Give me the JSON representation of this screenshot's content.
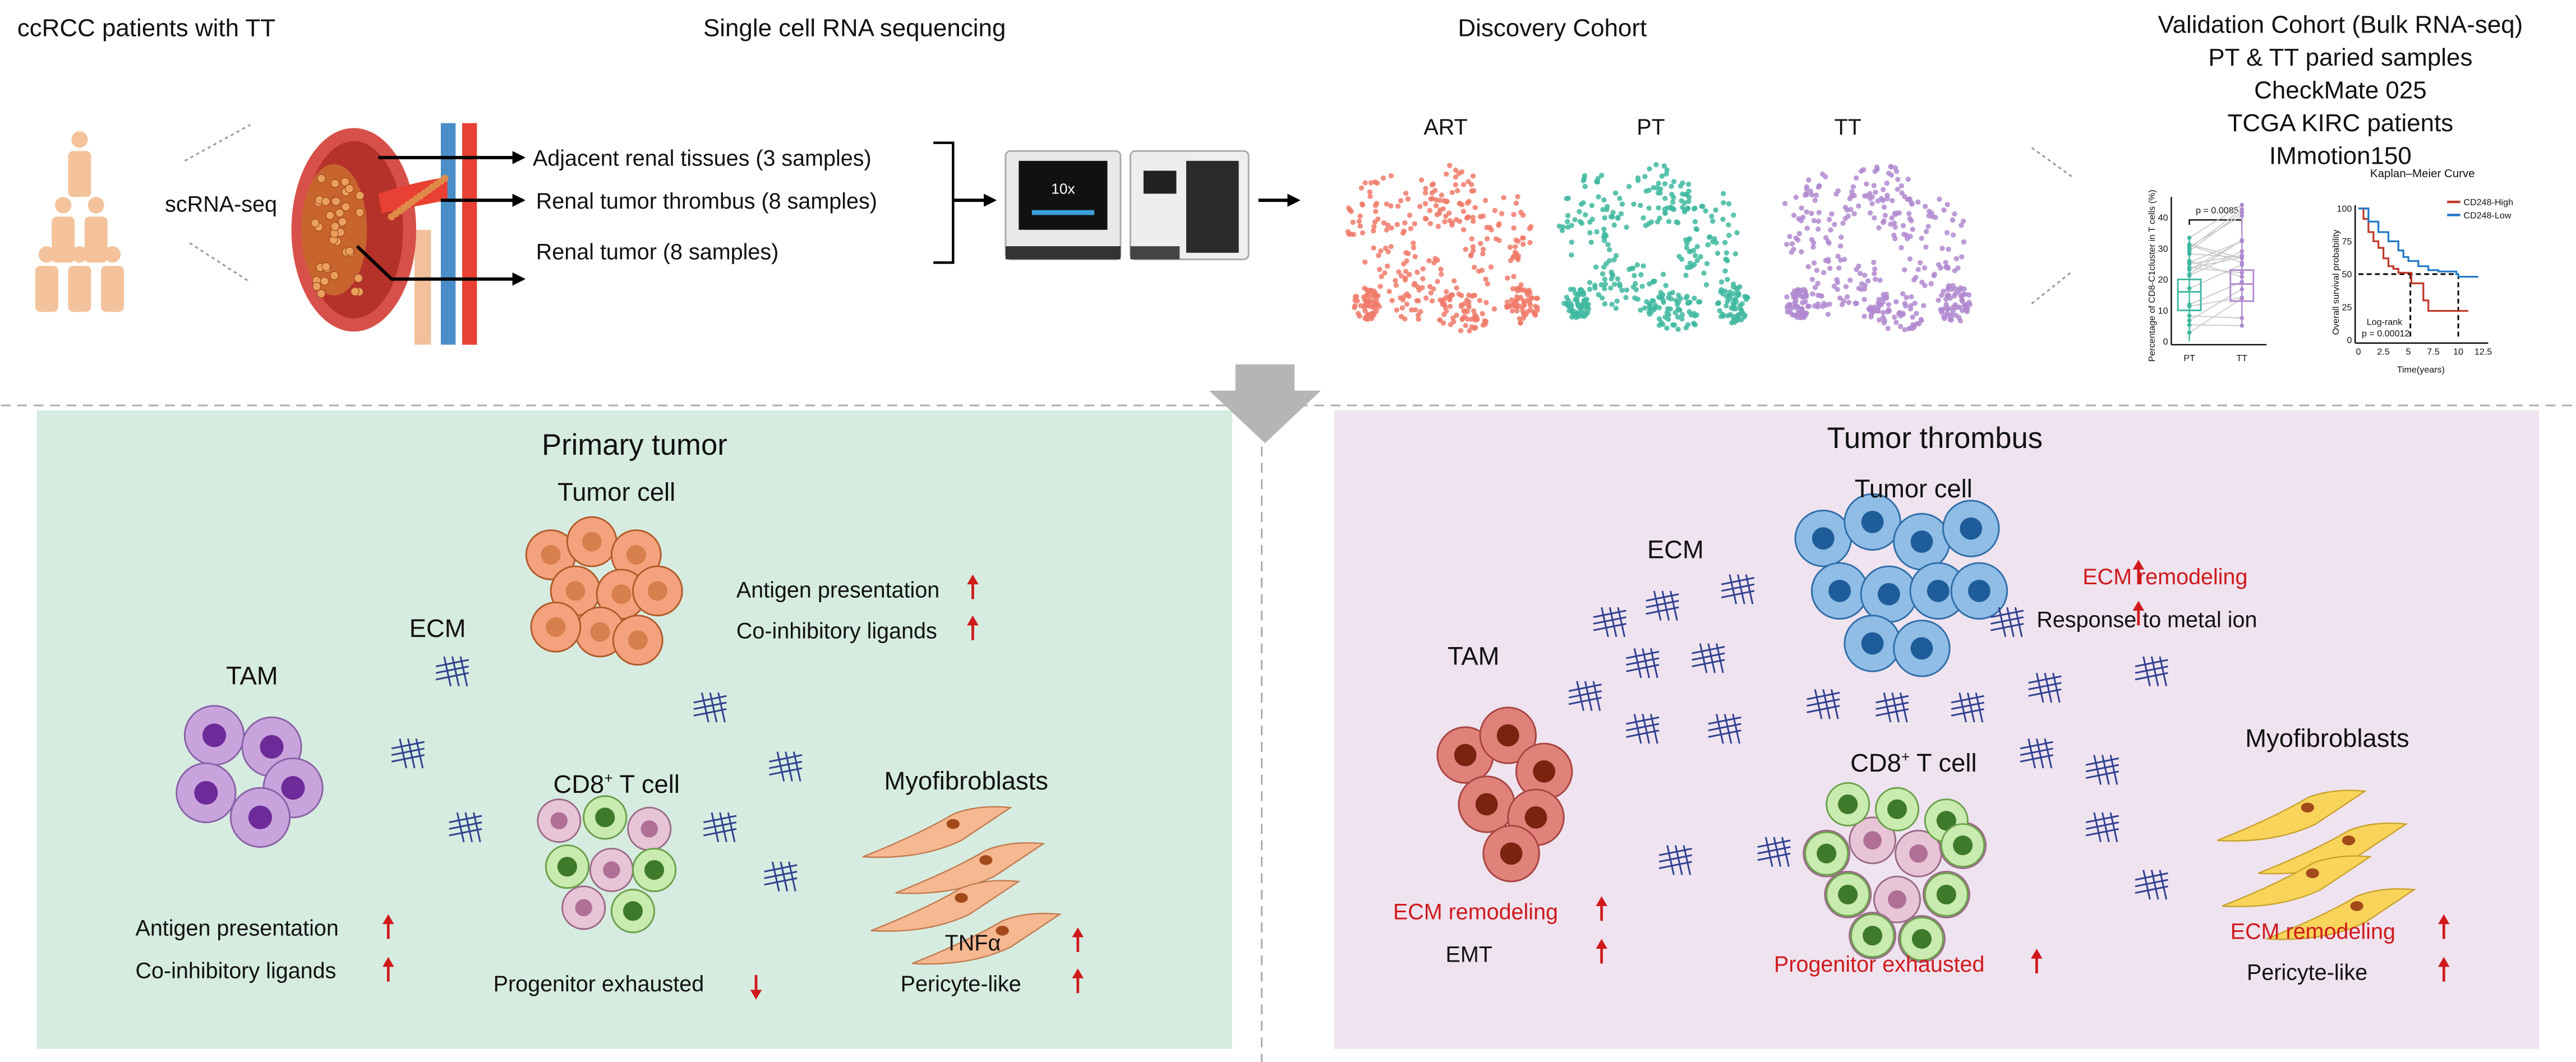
{
  "top": {
    "patients_title": "ccRCC patients with TT",
    "scrna_title": "Single cell RNA sequencing",
    "discovery_title": "Discovery Cohort",
    "validation_title": "Validation Cohort (Bulk RNA-seq)",
    "validation_items": [
      "PT & TT paried samples",
      "CheckMate 025",
      "TCGA KIRC  patients",
      "IMmotion150"
    ],
    "scrna_label": "scRNA-seq",
    "samples": [
      "Adjacent renal tissues (3 samples)",
      "Renal tumor thrombus  (8 samples)",
      "Renal tumor  (8 samples)"
    ],
    "umap_labels": [
      "ART",
      "PT",
      "TT"
    ],
    "machine_label": "10x"
  },
  "colors": {
    "people": "#f4c39b",
    "art": "#f07a6a",
    "pt": "#3fb8a0",
    "tt": "#b08ad0",
    "primary_panel": "#d6ece0",
    "thrombus_panel": "#efe3f0",
    "up_arrow": "#d0191b",
    "ecm_text": "#d0191b"
  },
  "chart_data": [
    {
      "type": "box",
      "ylabel": "Percentage of CD8-C1cluster in T cells (%)",
      "categories": [
        "PT",
        "TT"
      ],
      "yticks": [
        "0",
        "10",
        "20",
        "30",
        "40"
      ],
      "ylim": [
        0,
        45
      ],
      "annotation": "p = 0.0085",
      "boxes": [
        {
          "name": "PT",
          "q1": 10,
          "median": 16,
          "q3": 20,
          "min": 0,
          "max": 34
        },
        {
          "name": "TT",
          "q1": 13,
          "median": 18.5,
          "q3": 23,
          "min": 5,
          "max": 44
        }
      ]
    },
    {
      "type": "line",
      "title": "Kaplan–Meier Curve",
      "xlabel": "Time(years)",
      "ylabel": "Overall survival probability",
      "xticks": [
        "0",
        "2.5",
        "5",
        "7.5",
        "10",
        "12.5"
      ],
      "yticks": [
        "0",
        "25",
        "50",
        "75",
        "100"
      ],
      "xlim": [
        0,
        12.5
      ],
      "ylim": [
        0,
        100
      ],
      "annotation_1": "Log-rank",
      "annotation_2": "p = 0.00012",
      "series": [
        {
          "name": "CD248-High",
          "color": "#c0392b",
          "x": [
            0,
            0.5,
            1,
            1.5,
            2,
            2.5,
            3,
            3.5,
            4,
            5,
            5.3,
            6,
            6.5,
            7,
            8,
            10,
            11
          ],
          "y": [
            100,
            92,
            82,
            75,
            70,
            62,
            56,
            54,
            51,
            51,
            43,
            43,
            30,
            22,
            22,
            22,
            22
          ]
        },
        {
          "name": "CD248-Low",
          "color": "#1f77c4",
          "x": [
            0,
            1,
            2,
            3,
            4,
            4.5,
            5,
            6,
            7,
            8,
            9,
            9.8,
            10,
            12
          ],
          "y": [
            100,
            90,
            82,
            75,
            68,
            63,
            60,
            56,
            53,
            52,
            52,
            50,
            48,
            48
          ]
        }
      ]
    }
  ],
  "primary": {
    "title": "Primary tumor",
    "tumor_cell": "Tumor cell",
    "ecm": "ECM",
    "tam": "TAM",
    "cd8_main": "CD8",
    "cd8_sup": "+",
    "cd8_rest": " T cell",
    "myofibroblasts": "Myofibroblasts",
    "tumor_features": [
      "Antigen presentation",
      "Co-inhibitory ligands"
    ],
    "tam_features": [
      "Antigen presentation",
      "Co-inhibitory ligands"
    ],
    "cd8_features": [
      "Progenitor exhausted"
    ],
    "myo_features": [
      "TNFα",
      "Pericyte-like"
    ]
  },
  "thrombus": {
    "title": "Tumor thrombus",
    "tumor_cell": "Tumor cell",
    "ecm": "ECM",
    "tam": "TAM",
    "cd8_main": "CD8",
    "cd8_sup": "+",
    "cd8_rest": " T cell",
    "myofibroblasts": "Myofibroblasts",
    "tumor_features": [
      "ECM remodeling",
      "Response to metal ion"
    ],
    "tam_features": [
      "ECM remodeling",
      "EMT"
    ],
    "cd8_features": [
      "Progenitor exhausted"
    ],
    "myo_features": [
      "ECM remodeling",
      "Pericyte-like"
    ]
  }
}
